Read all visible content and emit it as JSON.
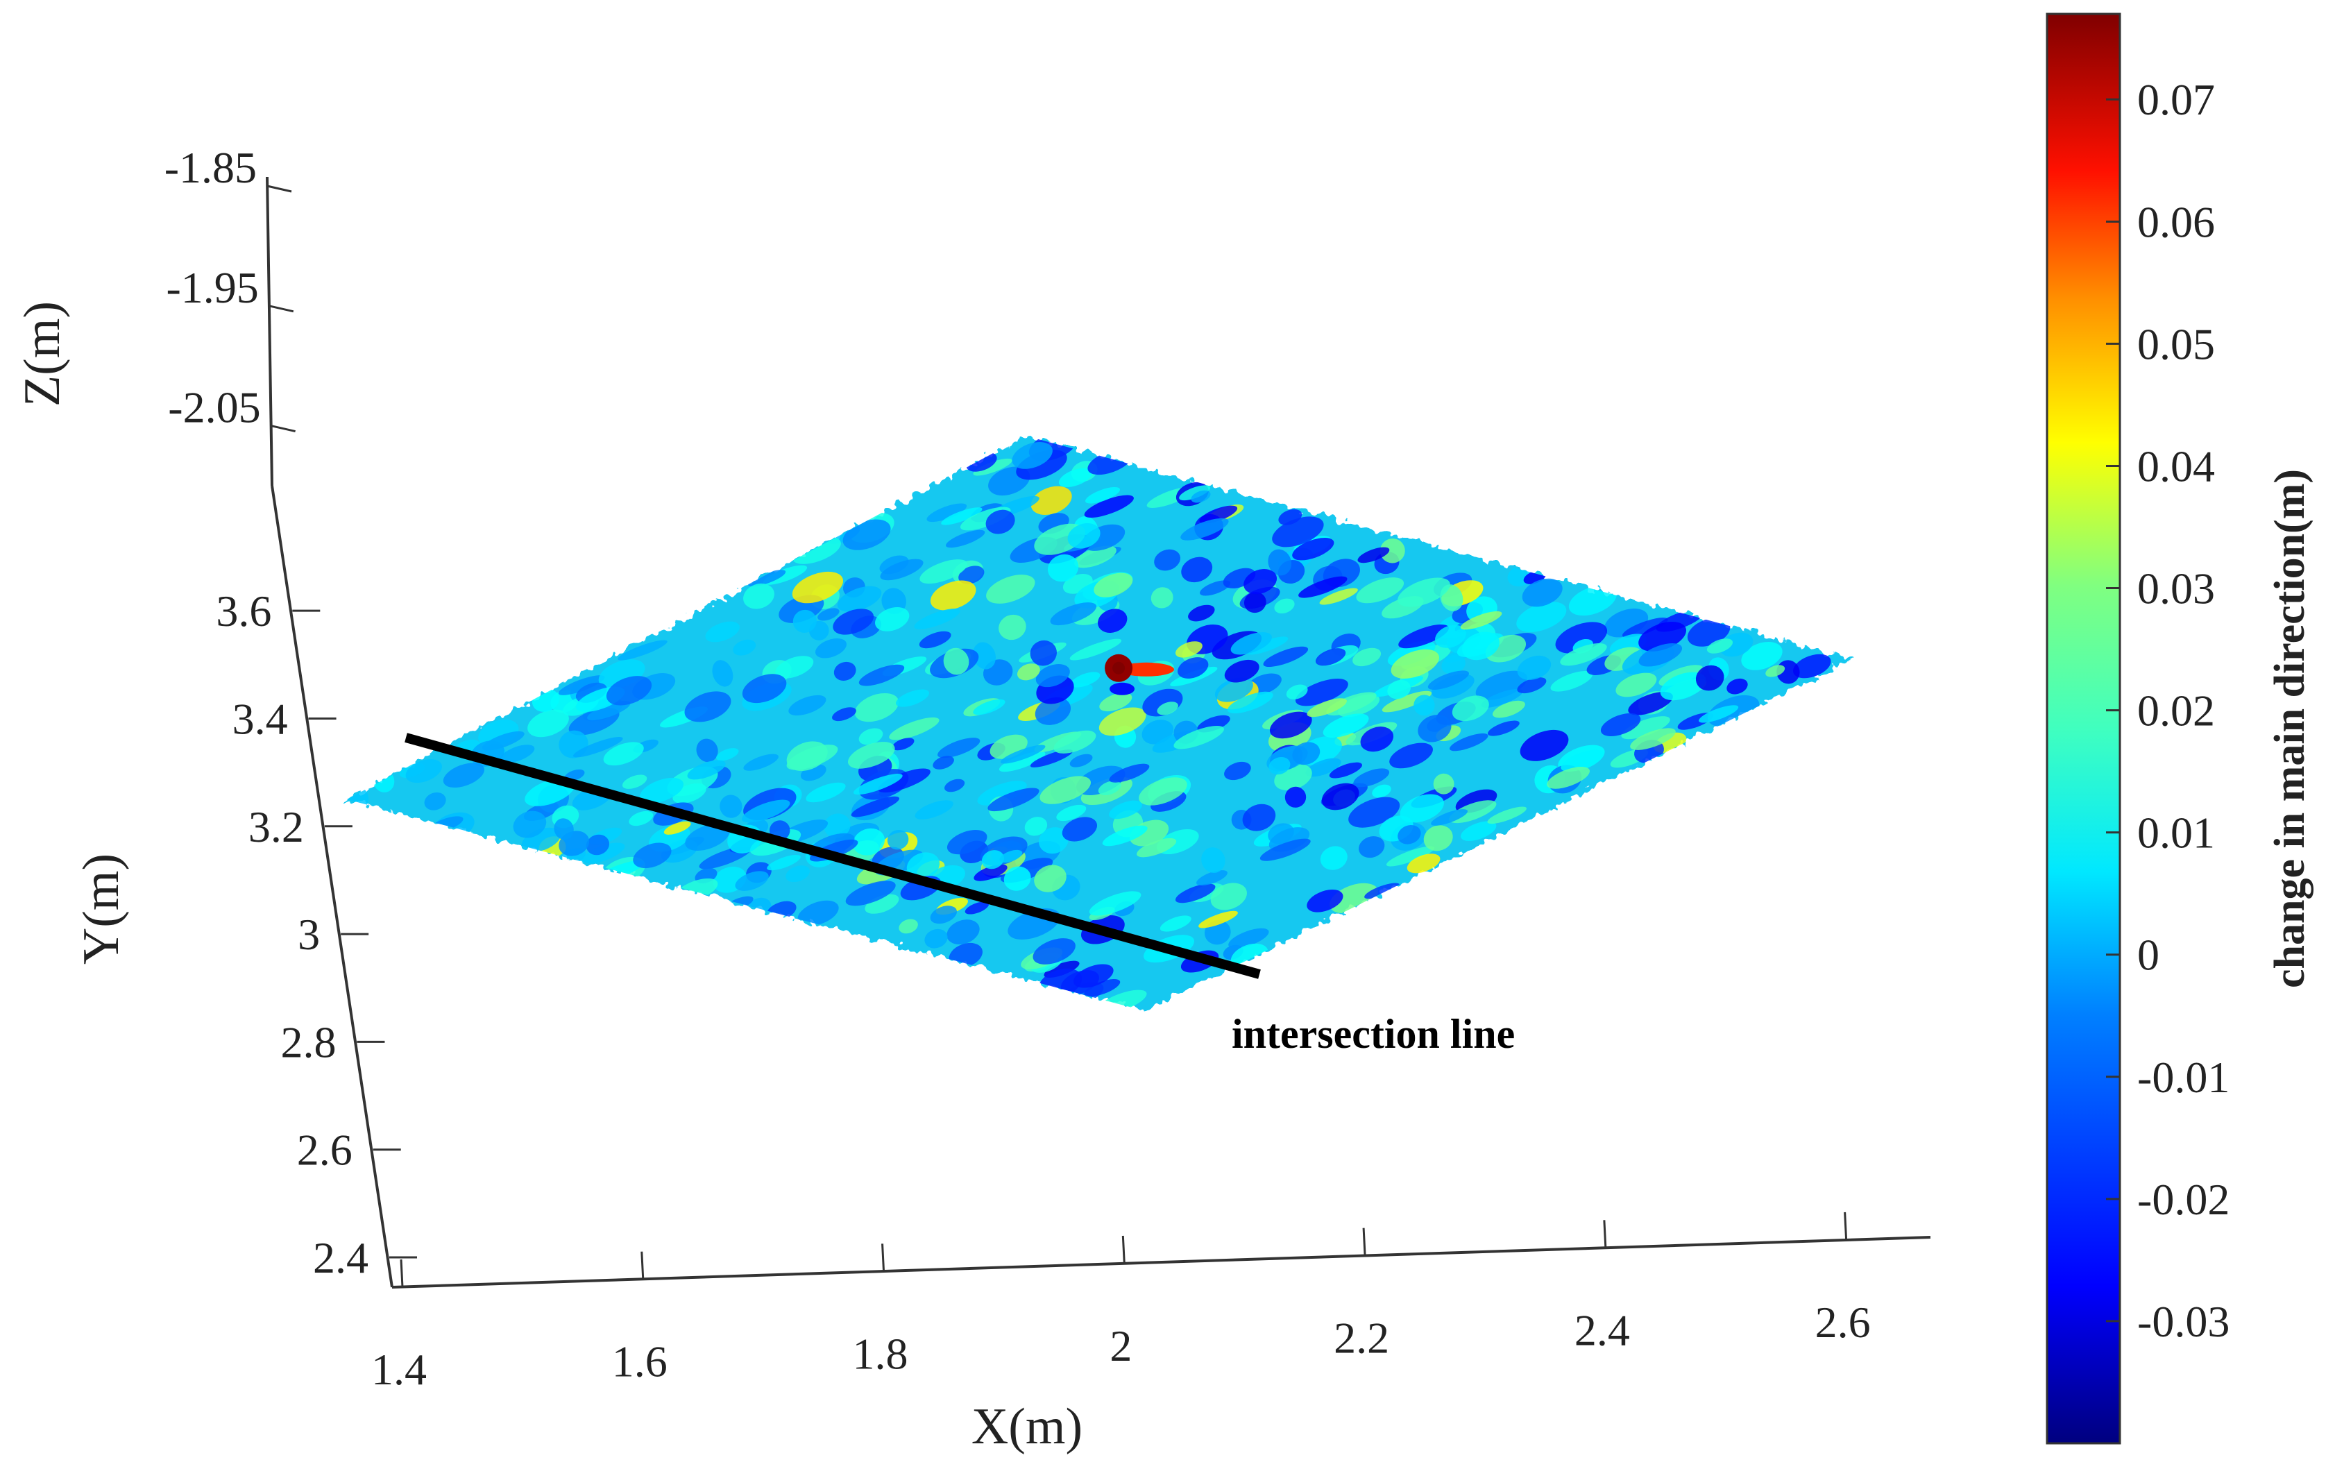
{
  "chart_data": {
    "type": "scatter",
    "subtype": "3d-point-cloud-surface",
    "axes": {
      "x": {
        "label": "X(m)",
        "ticks": [
          "1.4",
          "1.6",
          "1.8",
          "2",
          "2.2",
          "2.4",
          "2.6"
        ],
        "lim": [
          1.4,
          2.67
        ]
      },
      "y": {
        "label": "Y(m)",
        "ticks": [
          "2.4",
          "2.6",
          "2.8",
          "3",
          "3.2",
          "3.4",
          "3.6"
        ],
        "lim": [
          2.4,
          3.68
        ]
      },
      "z": {
        "label": "Z(m)",
        "ticks": [
          "-1.85",
          "-1.95",
          "-2.05"
        ],
        "lim": [
          -2.1,
          -1.85
        ]
      }
    },
    "colorbar": {
      "label": "change in main direction(m)",
      "colormap": "jet",
      "range": [
        -0.04,
        0.077
      ],
      "ticks": [
        "0.07",
        "0.06",
        "0.05",
        "0.04",
        "0.03",
        "0.02",
        "0.01",
        "0",
        "-0.01",
        "-0.02",
        "-0.03"
      ],
      "colors": [
        "#00008f",
        "#0000ff",
        "#0080ff",
        "#00ffff",
        "#80ff80",
        "#ffff00",
        "#ff8000",
        "#ff0000",
        "#800000"
      ]
    },
    "surface": {
      "base_value": 0.0,
      "hotspot": {
        "x": 2.13,
        "y": 3.18,
        "value": 0.075
      }
    },
    "annotation": {
      "text": "intersection line",
      "line_from": {
        "x": 1.4,
        "y": 3.25
      },
      "line_to": {
        "x": 2.13,
        "y": 2.68
      }
    },
    "grid": false
  }
}
